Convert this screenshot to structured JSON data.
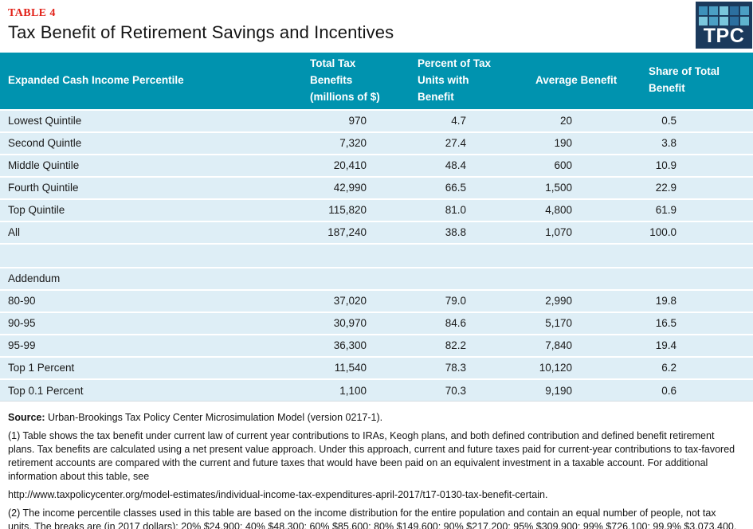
{
  "page": {
    "table_label": "TABLE 4",
    "title": "Tax Benefit of Retirement Savings and Incentives"
  },
  "logo": {
    "text": "TPC",
    "tiles": [
      "#3D90BA",
      "#4B9FC4",
      "#7AC6DC",
      "#2C6F9F",
      "#4B9FC4",
      "#7AC6DC",
      "#4B9FC4",
      "#7AC6DC",
      "#2C6F9F",
      "#5FB4CE"
    ]
  },
  "table": {
    "columns": [
      {
        "text": "Expanded Cash Income Percentile"
      },
      {
        "text": "Total Tax\nBenefits\n(millions of $)"
      },
      {
        "text": "Percent of Tax\nUnits with\nBenefit"
      },
      {
        "text": "Average Benefit"
      },
      {
        "text": "Share of Total\nBenefit"
      }
    ],
    "rows": [
      {
        "label": "Lowest Quintile",
        "values": [
          "970",
          "4.7",
          "20",
          "0.5"
        ]
      },
      {
        "label": "Second Quintle",
        "values": [
          "7,320",
          "27.4",
          "190",
          "3.8"
        ]
      },
      {
        "label": "Middle Quintile",
        "values": [
          "20,410",
          "48.4",
          "600",
          "10.9"
        ]
      },
      {
        "label": "Fourth Quintile",
        "values": [
          "42,990",
          "66.5",
          "1,500",
          "22.9"
        ]
      },
      {
        "label": "Top Quintile",
        "values": [
          "115,820",
          "81.0",
          "4,800",
          "61.9"
        ]
      },
      {
        "label": "All",
        "values": [
          "187,240",
          "38.8",
          "1,070",
          "100.0"
        ]
      },
      {
        "label": "",
        "values": [
          "",
          "",
          "",
          ""
        ],
        "type": "spacer"
      },
      {
        "label": "Addendum",
        "values": [
          "",
          "",
          "",
          ""
        ],
        "type": "section"
      },
      {
        "label": "80-90",
        "values": [
          "37,020",
          "79.0",
          "2,990",
          "19.8"
        ]
      },
      {
        "label": "90-95",
        "values": [
          "30,970",
          "84.6",
          "5,170",
          "16.5"
        ]
      },
      {
        "label": "95-99",
        "values": [
          "36,300",
          "82.2",
          "7,840",
          "19.4"
        ]
      },
      {
        "label": "Top 1 Percent",
        "values": [
          "11,540",
          "78.3",
          "10,120",
          "6.2"
        ]
      },
      {
        "label": "Top 0.1 Percent",
        "values": [
          "1,100",
          "70.3",
          "9,190",
          "0.6"
        ]
      }
    ]
  },
  "notes": {
    "source_label": "Source:",
    "source_text": " Urban-Brookings Tax Policy Center Microsimulation Model (version 0217-1).",
    "note1": "(1) Table shows the tax benefit under current law of current year contributions to IRAs, Keogh plans, and both defined contribution and defined benefit retirement plans. Tax benefits are calculated using a net present value approach. Under this approach, current and future taxes paid for current-year contributions to tax-favored retirement accounts are compared with the current and future taxes that would have been paid on an equivalent investment in a taxable account. For additional information about this table, see",
    "url": "http://www.taxpolicycenter.org/model-estimates/individual-income-tax-expenditures-april-2017/t17-0130-tax-benefit-certain.",
    "note2": "(2) The income percentile classes used in this table are based on the income distribution for the entire population and contain an equal number of people, not tax units. The breaks are (in 2017 dollars): 20% $24,900; 40% $48,300; 60% $85,600; 80% $149,600; 90% $217,200; 95% $309,900; 99% $726,100; 99.9% $3,073,400."
  },
  "colors": {
    "accent_teal": "#0093AF",
    "row_blue": "#DEEEF6",
    "table_label_red": "#E2231A",
    "logo_navy": "#1B3A5C"
  }
}
